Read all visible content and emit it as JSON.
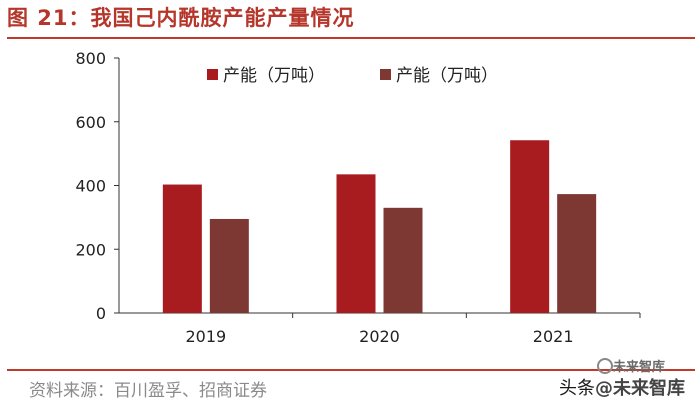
{
  "figure": {
    "title": "图 21：我国己内酰胺产能产量情况",
    "source": "资料来源：百川盈孚、招商证券"
  },
  "watermark": {
    "small_text": "未来智库",
    "prefix": "头条",
    "brand": "@未来智库"
  },
  "colors": {
    "title": "#b5372b",
    "rule": "#c0392b",
    "capacity": "#a81b1f",
    "output": "#7e3833"
  },
  "chart_data": {
    "type": "bar",
    "title": "",
    "xlabel": "",
    "ylabel": "",
    "categories": [
      "2019",
      "2020",
      "2021"
    ],
    "series": [
      {
        "name": "产能（万吨）",
        "values": [
          403,
          435,
          542
        ],
        "color": "#a81b1f"
      },
      {
        "name": "产能（万吨）",
        "values": [
          295,
          330,
          373
        ],
        "color": "#7e3833"
      }
    ],
    "ylim": [
      0,
      800
    ],
    "yticks": [
      0,
      200,
      400,
      600,
      800
    ],
    "grid": false,
    "legend": "top-center"
  }
}
